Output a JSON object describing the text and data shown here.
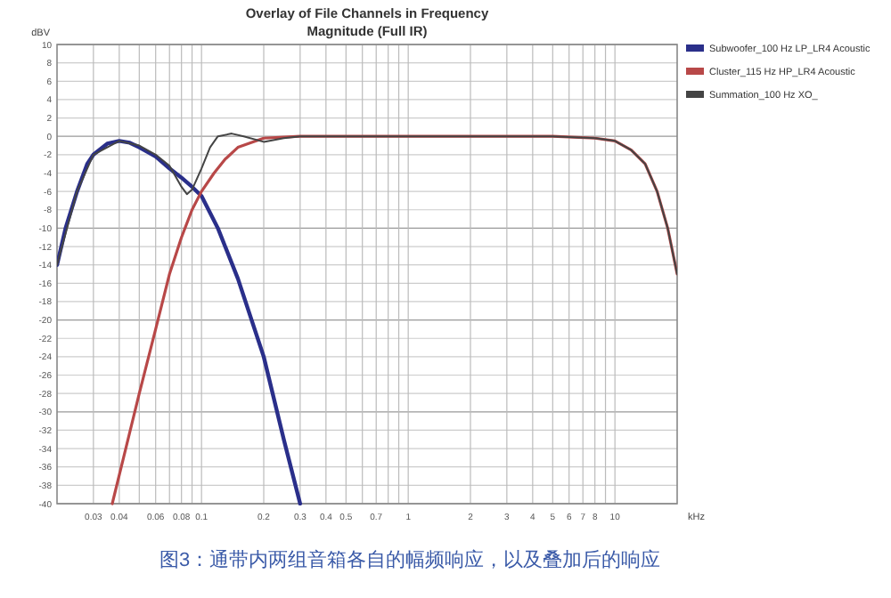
{
  "chart_data": {
    "type": "line",
    "title": "Overlay of File Channels in Frequency",
    "subtitle": "Magnitude (Full IR)",
    "ylabel": "dBV",
    "xlabel": "kHz",
    "log": "x",
    "grid": true,
    "legend": "right",
    "line_style": "solid",
    "marker": "none",
    "xlim": [
      0.02,
      20
    ],
    "ylim": [
      -40,
      10
    ],
    "xticks": [
      0.03,
      0.04,
      {
        "value": 0.05,
        "label": null
      },
      0.06,
      {
        "value": 0.07,
        "label": null
      },
      0.08,
      {
        "value": 0.09,
        "label": null
      },
      0.1,
      0.2,
      0.3,
      0.4,
      0.5,
      {
        "value": 0.6,
        "label": null
      },
      0.7,
      {
        "value": 0.8,
        "label": null
      },
      {
        "value": 0.9,
        "label": null
      },
      1,
      2,
      3,
      4,
      5,
      6,
      7,
      8,
      {
        "value": 9,
        "label": null
      },
      10
    ],
    "yticks": [
      -40,
      -38,
      -36,
      -34,
      -32,
      -30,
      -28,
      -26,
      -24,
      -22,
      -20,
      -18,
      -16,
      -14,
      -12,
      -10,
      -8,
      -6,
      -4,
      -2,
      0,
      2,
      4,
      6,
      8,
      10
    ],
    "series": [
      {
        "name": "Subwoofer_100 Hz LP_LR4 Acoustic",
        "color": "#2a2f8a",
        "x": [
          0.02,
          0.022,
          0.025,
          0.028,
          0.03,
          0.035,
          0.04,
          0.045,
          0.05,
          0.06,
          0.07,
          0.08,
          0.09,
          0.1,
          0.12,
          0.15,
          0.2,
          0.25,
          0.3
        ],
        "values": [
          -14,
          -10,
          -6,
          -3,
          -2,
          -0.8,
          -0.5,
          -0.7,
          -1.2,
          -2.2,
          -3.5,
          -4.5,
          -5.5,
          -6.5,
          -10,
          -15.5,
          -24,
          -33,
          -40
        ]
      },
      {
        "name": "Cluster_115 Hz HP_LR4 Acoustic",
        "color": "#b84848",
        "x": [
          0.037,
          0.05,
          0.06,
          0.07,
          0.08,
          0.09,
          0.1,
          0.115,
          0.13,
          0.15,
          0.2,
          0.3,
          1,
          5,
          8,
          10,
          12,
          14,
          16,
          18,
          20
        ],
        "values": [
          -40,
          -28,
          -21,
          -15,
          -11,
          -8,
          -6,
          -4,
          -2.5,
          -1.2,
          -0.2,
          0,
          0,
          0,
          -0.2,
          -0.5,
          -1.5,
          -3,
          -6,
          -10,
          -15
        ]
      },
      {
        "name": "Summation_100 Hz XO_",
        "color": "#444444",
        "x": [
          0.02,
          0.025,
          0.03,
          0.04,
          0.05,
          0.06,
          0.07,
          0.08,
          0.085,
          0.09,
          0.1,
          0.11,
          0.12,
          0.14,
          0.16,
          0.2,
          0.25,
          0.3,
          1,
          5,
          8,
          10,
          12,
          14,
          16,
          18,
          20
        ],
        "values": [
          -14,
          -6,
          -2,
          -0.5,
          -1,
          -2,
          -3.2,
          -5.5,
          -6.3,
          -5.8,
          -3.5,
          -1.2,
          0,
          0.3,
          0,
          -0.6,
          -0.2,
          0,
          0,
          0,
          -0.2,
          -0.5,
          -1.5,
          -3,
          -6,
          -10,
          -15
        ]
      }
    ],
    "annotations": [
      "图3：通带内两组音箱各自的幅频响应，以及叠加后的响应"
    ]
  }
}
